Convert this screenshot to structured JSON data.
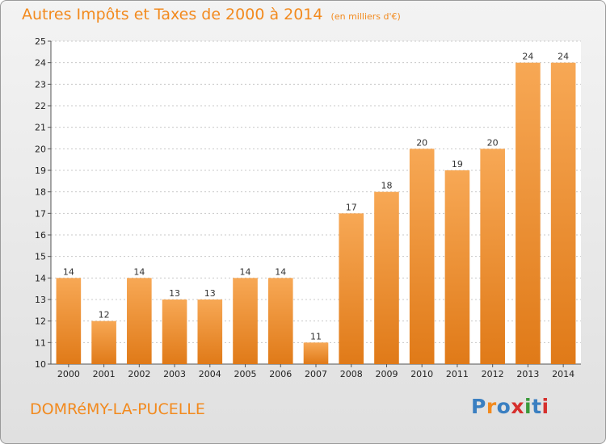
{
  "header": {
    "title": "Autres Impôts et Taxes de 2000 à 2014",
    "subtitle": "(en milliers d'€)"
  },
  "footer": {
    "place": "DOMRéMY-LA-PUCELLE",
    "logo_text": "Proxiti",
    "logo_colors": [
      "#3a7fc1",
      "#f28a1e",
      "#3a7fc1",
      "#d6302d",
      "#3a9a3a",
      "#3a7fc1",
      "#d6302d"
    ]
  },
  "colors": {
    "bar_light": "#f7a855",
    "bar_dark": "#e07a18",
    "accent": "#f28a1e"
  },
  "chart_data": {
    "type": "bar",
    "title": "Autres Impôts et Taxes de 2000 à 2014",
    "subtitle": "(en milliers d'€)",
    "categories": [
      "2000",
      "2001",
      "2002",
      "2003",
      "2004",
      "2005",
      "2006",
      "2007",
      "2008",
      "2009",
      "2010",
      "2011",
      "2012",
      "2013",
      "2014"
    ],
    "values": [
      14,
      12,
      14,
      13,
      13,
      14,
      14,
      11,
      17,
      18,
      20,
      19,
      20,
      24,
      24
    ],
    "ylim": [
      10,
      25
    ],
    "yticks": [
      10,
      11,
      12,
      13,
      14,
      15,
      16,
      17,
      18,
      19,
      20,
      21,
      22,
      23,
      24,
      25
    ],
    "grid": true,
    "data_labels": true
  }
}
